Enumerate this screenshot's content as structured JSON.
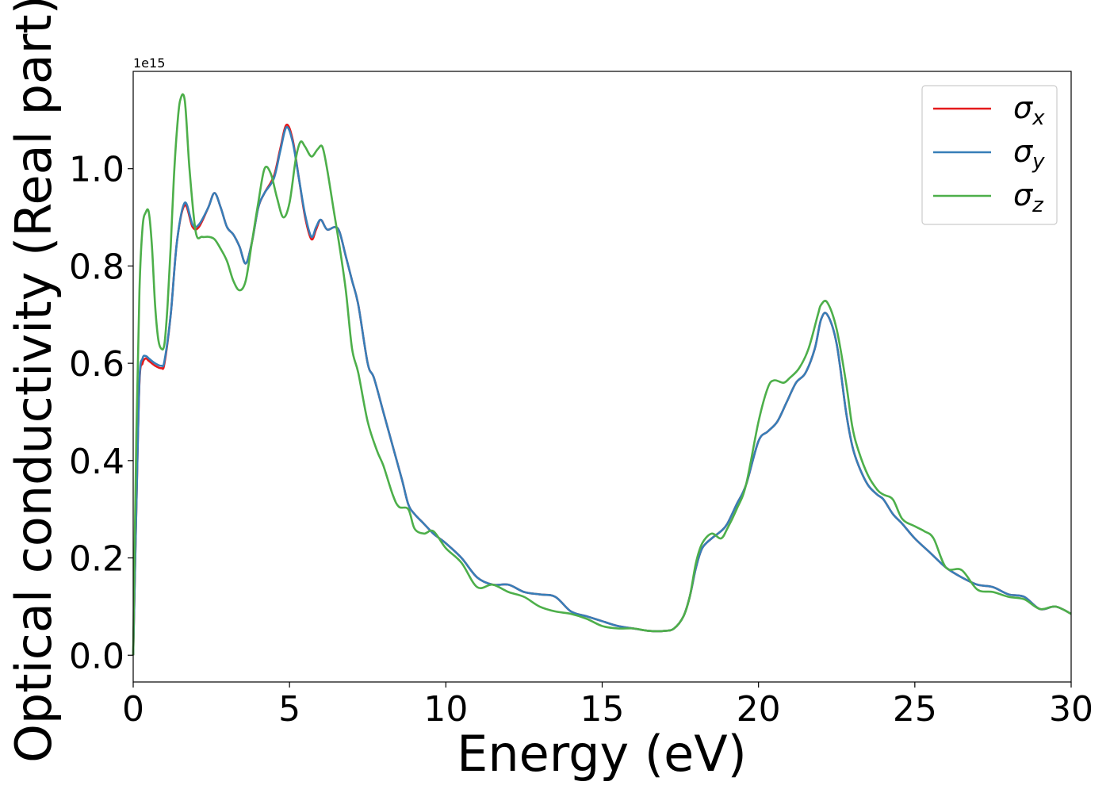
{
  "chart_data": {
    "type": "line",
    "title": "",
    "xlabel": "Energy (eV)",
    "ylabel": "Optical conductivity (Real part)",
    "y_offset_text": "1e15",
    "xlim": [
      0,
      30
    ],
    "ylim": [
      -0.055,
      1.2
    ],
    "xticks": [
      0,
      5,
      10,
      15,
      20,
      25,
      30
    ],
    "xtick_labels": [
      "0",
      "5",
      "10",
      "15",
      "20",
      "25",
      "30"
    ],
    "yticks": [
      0.0,
      0.2,
      0.4,
      0.6,
      0.8,
      1.0
    ],
    "ytick_labels": [
      "0.0",
      "0.2",
      "0.4",
      "0.6",
      "0.8",
      "1.0"
    ],
    "grid": false,
    "legend_position": "top-right",
    "series": [
      {
        "name": "σ_x",
        "label_base": "σ",
        "label_sub": "x",
        "color": "#e41a1c",
        "x": [
          0,
          0.1,
          0.2,
          0.3,
          0.4,
          0.5,
          0.7,
          0.9,
          1.0,
          1.2,
          1.4,
          1.65,
          1.9,
          2.1,
          2.4,
          2.6,
          2.8,
          3.0,
          3.2,
          3.4,
          3.6,
          3.8,
          4.0,
          4.2,
          4.5,
          4.7,
          4.9,
          5.1,
          5.3,
          5.5,
          5.7,
          5.85,
          6.0,
          6.2,
          6.45,
          6.6,
          6.8,
          7.0,
          7.2,
          7.5,
          7.7,
          8.0,
          8.3,
          8.6,
          8.8,
          9.0,
          9.3,
          9.6,
          9.8,
          10.0,
          10.5,
          11.0,
          11.5,
          12.0,
          12.5,
          13.0,
          13.5,
          14.0,
          14.5,
          15.0,
          15.5,
          16.0,
          16.5,
          17.0,
          17.3,
          17.6,
          17.8,
          18.0,
          18.2,
          18.5,
          18.8,
          19.0,
          19.3,
          19.6,
          20.0,
          20.3,
          20.6,
          20.9,
          21.2,
          21.5,
          21.8,
          22.0,
          22.2,
          22.5,
          22.8,
          23.0,
          23.2,
          23.5,
          23.8,
          24.0,
          24.3,
          24.6,
          25.0,
          25.5,
          26.0,
          26.5,
          27.0,
          27.5,
          28.0,
          28.5,
          29.0,
          29.5,
          30.0
        ],
        "y": [
          0.0,
          0.3,
          0.56,
          0.6,
          0.61,
          0.605,
          0.595,
          0.59,
          0.6,
          0.7,
          0.85,
          0.925,
          0.88,
          0.88,
          0.92,
          0.95,
          0.92,
          0.88,
          0.865,
          0.84,
          0.805,
          0.85,
          0.92,
          0.95,
          0.985,
          1.04,
          1.09,
          1.06,
          0.98,
          0.9,
          0.855,
          0.875,
          0.895,
          0.875,
          0.88,
          0.87,
          0.82,
          0.77,
          0.72,
          0.6,
          0.57,
          0.5,
          0.43,
          0.36,
          0.31,
          0.29,
          0.27,
          0.25,
          0.24,
          0.23,
          0.2,
          0.16,
          0.145,
          0.145,
          0.13,
          0.125,
          0.12,
          0.09,
          0.08,
          0.07,
          0.06,
          0.055,
          0.05,
          0.05,
          0.055,
          0.08,
          0.12,
          0.18,
          0.22,
          0.24,
          0.255,
          0.27,
          0.31,
          0.35,
          0.44,
          0.46,
          0.48,
          0.52,
          0.56,
          0.58,
          0.63,
          0.69,
          0.7,
          0.64,
          0.5,
          0.43,
          0.39,
          0.35,
          0.33,
          0.32,
          0.29,
          0.27,
          0.24,
          0.21,
          0.18,
          0.16,
          0.145,
          0.14,
          0.125,
          0.12,
          0.095,
          0.1,
          0.085
        ]
      },
      {
        "name": "σ_y",
        "label_base": "σ",
        "label_sub": "y",
        "color": "#377eb8",
        "x": [
          0,
          0.1,
          0.2,
          0.3,
          0.4,
          0.5,
          0.7,
          0.9,
          1.0,
          1.2,
          1.4,
          1.65,
          1.9,
          2.1,
          2.4,
          2.6,
          2.8,
          3.0,
          3.2,
          3.4,
          3.6,
          3.8,
          4.0,
          4.2,
          4.5,
          4.7,
          4.9,
          5.1,
          5.3,
          5.5,
          5.7,
          5.85,
          6.0,
          6.2,
          6.45,
          6.6,
          6.8,
          7.0,
          7.2,
          7.5,
          7.7,
          8.0,
          8.3,
          8.6,
          8.8,
          9.0,
          9.3,
          9.6,
          9.8,
          10.0,
          10.5,
          11.0,
          11.5,
          12.0,
          12.5,
          13.0,
          13.5,
          14.0,
          14.5,
          15.0,
          15.5,
          16.0,
          16.5,
          17.0,
          17.3,
          17.6,
          17.8,
          18.0,
          18.2,
          18.5,
          18.8,
          19.0,
          19.3,
          19.6,
          20.0,
          20.3,
          20.6,
          20.9,
          21.2,
          21.5,
          21.8,
          22.0,
          22.2,
          22.5,
          22.8,
          23.0,
          23.2,
          23.5,
          23.8,
          24.0,
          24.3,
          24.6,
          25.0,
          25.5,
          26.0,
          26.5,
          27.0,
          27.5,
          28.0,
          28.5,
          29.0,
          29.5,
          30.0
        ],
        "y": [
          0.0,
          0.3,
          0.565,
          0.61,
          0.615,
          0.61,
          0.6,
          0.595,
          0.605,
          0.7,
          0.85,
          0.93,
          0.885,
          0.885,
          0.92,
          0.95,
          0.92,
          0.88,
          0.865,
          0.84,
          0.805,
          0.85,
          0.92,
          0.95,
          0.98,
          1.035,
          1.085,
          1.055,
          0.98,
          0.905,
          0.86,
          0.88,
          0.895,
          0.875,
          0.88,
          0.87,
          0.82,
          0.77,
          0.72,
          0.6,
          0.57,
          0.5,
          0.43,
          0.36,
          0.31,
          0.29,
          0.27,
          0.25,
          0.24,
          0.23,
          0.2,
          0.16,
          0.145,
          0.145,
          0.13,
          0.125,
          0.12,
          0.09,
          0.08,
          0.07,
          0.06,
          0.055,
          0.05,
          0.05,
          0.055,
          0.08,
          0.12,
          0.18,
          0.22,
          0.24,
          0.255,
          0.27,
          0.31,
          0.35,
          0.44,
          0.46,
          0.48,
          0.52,
          0.56,
          0.58,
          0.63,
          0.69,
          0.7,
          0.64,
          0.5,
          0.43,
          0.39,
          0.35,
          0.33,
          0.32,
          0.29,
          0.27,
          0.24,
          0.21,
          0.18,
          0.16,
          0.145,
          0.14,
          0.125,
          0.12,
          0.095,
          0.1,
          0.085
        ]
      },
      {
        "name": "σ_z",
        "label_base": "σ",
        "label_sub": "z",
        "color": "#4daf4a",
        "x": [
          0,
          0.1,
          0.2,
          0.3,
          0.4,
          0.5,
          0.6,
          0.7,
          0.8,
          0.9,
          1.0,
          1.1,
          1.2,
          1.3,
          1.4,
          1.5,
          1.65,
          1.8,
          2.0,
          2.2,
          2.4,
          2.6,
          2.8,
          3.0,
          3.2,
          3.4,
          3.6,
          3.8,
          4.0,
          4.2,
          4.4,
          4.6,
          4.8,
          5.0,
          5.2,
          5.35,
          5.5,
          5.7,
          5.9,
          6.05,
          6.2,
          6.4,
          6.6,
          6.8,
          7.0,
          7.2,
          7.5,
          7.8,
          8.0,
          8.3,
          8.5,
          8.8,
          9.0,
          9.3,
          9.6,
          10.0,
          10.5,
          11.0,
          11.5,
          12.0,
          12.5,
          13.0,
          13.5,
          14.0,
          14.5,
          15.0,
          15.5,
          16.0,
          16.5,
          17.0,
          17.3,
          17.6,
          17.8,
          18.0,
          18.2,
          18.5,
          18.8,
          19.0,
          19.3,
          19.6,
          20.0,
          20.3,
          20.5,
          20.8,
          21.0,
          21.3,
          21.6,
          21.9,
          22.0,
          22.2,
          22.5,
          22.8,
          23.0,
          23.2,
          23.5,
          23.8,
          24.0,
          24.3,
          24.6,
          25.0,
          25.3,
          25.6,
          26.0,
          26.5,
          27.0,
          27.5,
          28.0,
          28.5,
          29.0,
          29.5,
          30.0
        ],
        "y": [
          0.0,
          0.45,
          0.75,
          0.88,
          0.91,
          0.91,
          0.84,
          0.72,
          0.65,
          0.63,
          0.64,
          0.72,
          0.84,
          0.98,
          1.08,
          1.14,
          1.14,
          1.0,
          0.87,
          0.86,
          0.86,
          0.855,
          0.835,
          0.81,
          0.77,
          0.75,
          0.77,
          0.85,
          0.93,
          1.0,
          0.99,
          0.94,
          0.9,
          0.93,
          1.02,
          1.055,
          1.045,
          1.025,
          1.04,
          1.045,
          1.0,
          0.92,
          0.84,
          0.75,
          0.63,
          0.58,
          0.48,
          0.42,
          0.39,
          0.33,
          0.305,
          0.3,
          0.26,
          0.25,
          0.255,
          0.22,
          0.19,
          0.14,
          0.145,
          0.13,
          0.12,
          0.1,
          0.09,
          0.085,
          0.075,
          0.06,
          0.055,
          0.055,
          0.05,
          0.05,
          0.055,
          0.08,
          0.12,
          0.19,
          0.23,
          0.25,
          0.24,
          0.26,
          0.3,
          0.35,
          0.48,
          0.55,
          0.565,
          0.56,
          0.57,
          0.59,
          0.63,
          0.7,
          0.72,
          0.725,
          0.67,
          0.56,
          0.47,
          0.42,
          0.37,
          0.34,
          0.33,
          0.32,
          0.28,
          0.265,
          0.255,
          0.24,
          0.18,
          0.175,
          0.135,
          0.13,
          0.12,
          0.115,
          0.095,
          0.1,
          0.085
        ]
      }
    ]
  }
}
